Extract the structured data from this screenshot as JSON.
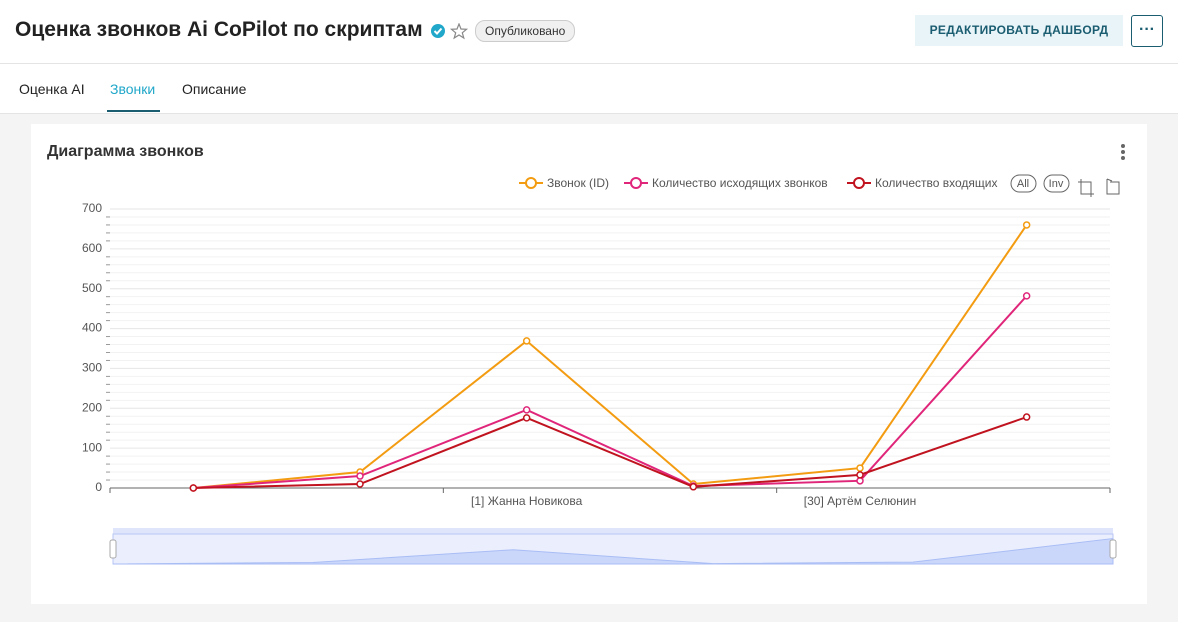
{
  "header": {
    "title": "Оценка звонков Ai CoPilot по скриптам",
    "status": "Опубликовано",
    "edit_button": "РЕДАКТИРОВАТЬ ДАШБОРД",
    "more_button": "···"
  },
  "tabs": [
    "Оценка AI",
    "Звонки",
    "Описание"
  ],
  "chart_data": {
    "type": "line",
    "title": "Диаграмма звонков",
    "categories": [
      null,
      null,
      "[1] Жанна Новикова",
      null,
      "[30] Артём Селюнин",
      null
    ],
    "series": [
      {
        "name": "Звонок (ID)",
        "color": "#f39c12",
        "values": [
          0,
          40,
          369,
          10,
          50,
          660
        ]
      },
      {
        "name": "Количество исходящих звонков",
        "color": "#e0267a",
        "values": [
          0,
          30,
          196,
          5,
          18,
          482
        ]
      },
      {
        "name": "Количество входящих",
        "color": "#c0131f",
        "values": [
          0,
          10,
          176,
          3,
          33,
          178
        ]
      }
    ],
    "legend_buttons": [
      "All",
      "Inv"
    ],
    "ylim": [
      0,
      700
    ],
    "yticks": [
      0,
      100,
      200,
      300,
      400,
      500,
      600,
      700
    ],
    "grid": true
  }
}
